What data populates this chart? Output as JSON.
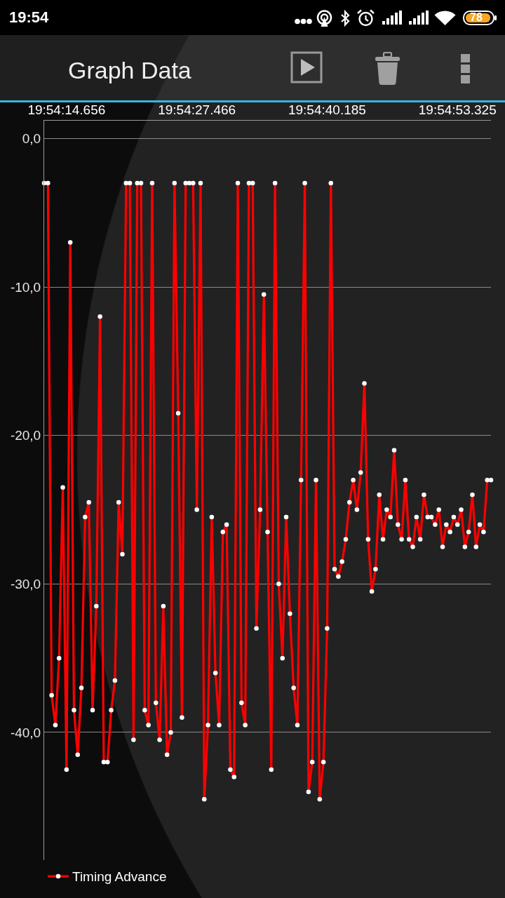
{
  "chart_data": {
    "type": "line",
    "title": "Graph Data",
    "annotations": [
      "19:54",
      "78"
    ],
    "categories": [
      null,
      null,
      null,
      null,
      null,
      null,
      "19:54:14.656",
      null,
      null,
      null,
      null,
      null,
      null,
      null,
      null,
      null,
      null,
      null,
      null,
      null,
      null,
      null,
      null,
      null,
      null,
      null,
      null,
      null,
      null,
      null,
      null,
      null,
      null,
      null,
      null,
      null,
      null,
      null,
      null,
      null,
      null,
      "19:54:27.466",
      null,
      null,
      null,
      null,
      null,
      null,
      null,
      null,
      null,
      null,
      null,
      null,
      null,
      null,
      null,
      null,
      null,
      null,
      null,
      null,
      null,
      null,
      null,
      null,
      null,
      null,
      null,
      null,
      null,
      null,
      null,
      null,
      null,
      null,
      "19:54:40.185",
      null,
      null,
      null,
      null,
      null,
      null,
      null,
      null,
      null,
      null,
      null,
      null,
      null,
      null,
      null,
      null,
      null,
      null,
      null,
      null,
      null,
      null,
      null,
      null,
      null,
      null,
      null,
      null,
      null,
      null,
      null,
      null,
      null,
      null,
      "19:54:53.325",
      null,
      null,
      null,
      null,
      null,
      null,
      null,
      null,
      null
    ],
    "series": [
      {
        "name": "Timing Advance",
        "color": "#ff0000",
        "values": [
          -3,
          -3,
          -37.5,
          -39.5,
          -35,
          -23.5,
          -42.5,
          -7,
          -38.5,
          -41.5,
          -37,
          -25.5,
          -24.5,
          -38.5,
          -31.5,
          -12,
          -42,
          -42,
          -38.5,
          -36.5,
          -24.5,
          -28,
          -3,
          -3,
          -40.5,
          -3,
          -3,
          -38.5,
          -39.5,
          -3,
          -38,
          -40.5,
          -31.5,
          -41.5,
          -40,
          -3,
          -18.5,
          -39,
          -3,
          -3,
          -3,
          -25,
          -3,
          -44.5,
          -39.5,
          -25.5,
          -36,
          -39.5,
          -26.5,
          -26,
          -42.5,
          -43,
          -3,
          -38,
          -39.5,
          -3,
          -3,
          -33,
          -25,
          -10.5,
          -26.5,
          -42.5,
          -3,
          -30,
          -35,
          -25.5,
          -32,
          -37,
          -39.5,
          -23,
          -3,
          -44,
          -42,
          -23,
          -44.5,
          -42,
          -33,
          -3,
          -29,
          -29.5,
          -28.5,
          -27,
          -24.5,
          -23,
          -25,
          -22.5,
          -16.5,
          -27,
          -30.5,
          -29,
          -24,
          -27,
          -25,
          -25.5,
          -21,
          -26,
          -27,
          -23,
          -27,
          -27.5,
          -25.5,
          -27,
          -24,
          -25.5,
          -25.5,
          -26,
          -25,
          -27.5,
          -26,
          -26.5,
          -25.5,
          -26,
          -25,
          -27.5,
          -26.5,
          -24,
          -27.5,
          -26,
          -26.5,
          -23,
          -23
        ]
      }
    ],
    "ylim": [
      -48.6,
      1.2
    ],
    "yticks": [
      {
        "value": 0,
        "label": "0,0"
      },
      {
        "value": -10,
        "label": "-10,0"
      },
      {
        "value": -20,
        "label": "-20,0"
      },
      {
        "value": -30,
        "label": "-30,0"
      },
      {
        "value": -40,
        "label": "-40,0"
      }
    ],
    "grid": "y",
    "legend": "bottom left",
    "marker": "circle",
    "line_style": "solid"
  }
}
